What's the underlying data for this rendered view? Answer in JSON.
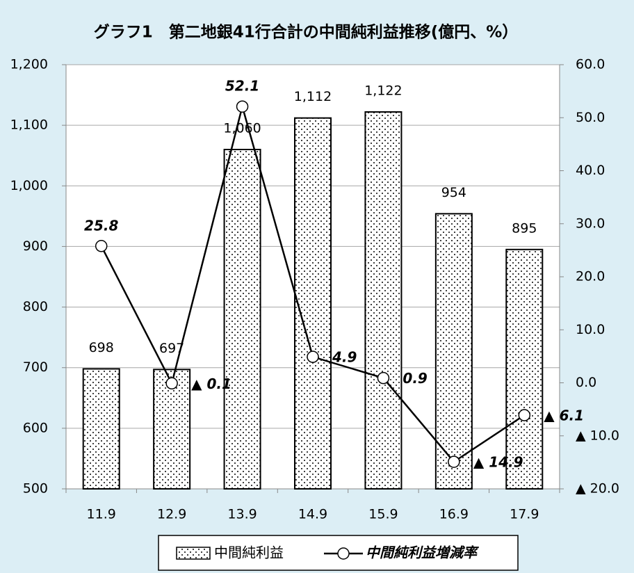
{
  "chart_data": {
    "type": "bar_line",
    "title": "グラフ1　第二地銀41行合計の中間純利益推移(億円、%）",
    "categories": [
      "11.9",
      "12.9",
      "13.9",
      "14.9",
      "15.9",
      "16.9",
      "17.9"
    ],
    "series": [
      {
        "name": "中間純利益",
        "type": "bar",
        "color": "#000000",
        "values": [
          698,
          697,
          1060,
          1112,
          1122,
          954,
          895
        ],
        "value_labels": [
          "698",
          "697",
          "1,060",
          "1,112",
          "1,122",
          "954",
          "895"
        ]
      },
      {
        "name": "中間純利益増減率",
        "type": "line",
        "axis": "y2",
        "color": "#000000",
        "values": [
          25.8,
          -0.1,
          52.1,
          4.9,
          0.9,
          -14.9,
          -6.1
        ],
        "value_labels": [
          "25.8",
          "▲ 0.1",
          "52.1",
          "4.9",
          "0.9",
          "▲ 14.9",
          "▲ 6.1"
        ]
      }
    ],
    "ylim": [
      500,
      1200
    ],
    "yticks": [
      500,
      600,
      700,
      800,
      900,
      {
        "value": 1000,
        "label": "1,000"
      },
      {
        "value": 1100,
        "label": "1,100"
      },
      {
        "value": 1200,
        "label": "1,200"
      }
    ],
    "y2lim": [
      -20,
      60
    ],
    "y2ticks": [
      {
        "value": -20,
        "label": "▲ 20.0"
      },
      {
        "value": -10,
        "label": "▲ 10.0"
      },
      {
        "value": 0,
        "label": "0.0"
      },
      {
        "value": 10,
        "label": "10.0"
      },
      {
        "value": 20,
        "label": "20.0"
      },
      {
        "value": 30,
        "label": "30.0"
      },
      {
        "value": 40,
        "label": "40.0"
      },
      {
        "value": 50,
        "label": "50.0"
      },
      {
        "value": 60,
        "label": "60.0"
      }
    ],
    "legend": "bottom"
  }
}
